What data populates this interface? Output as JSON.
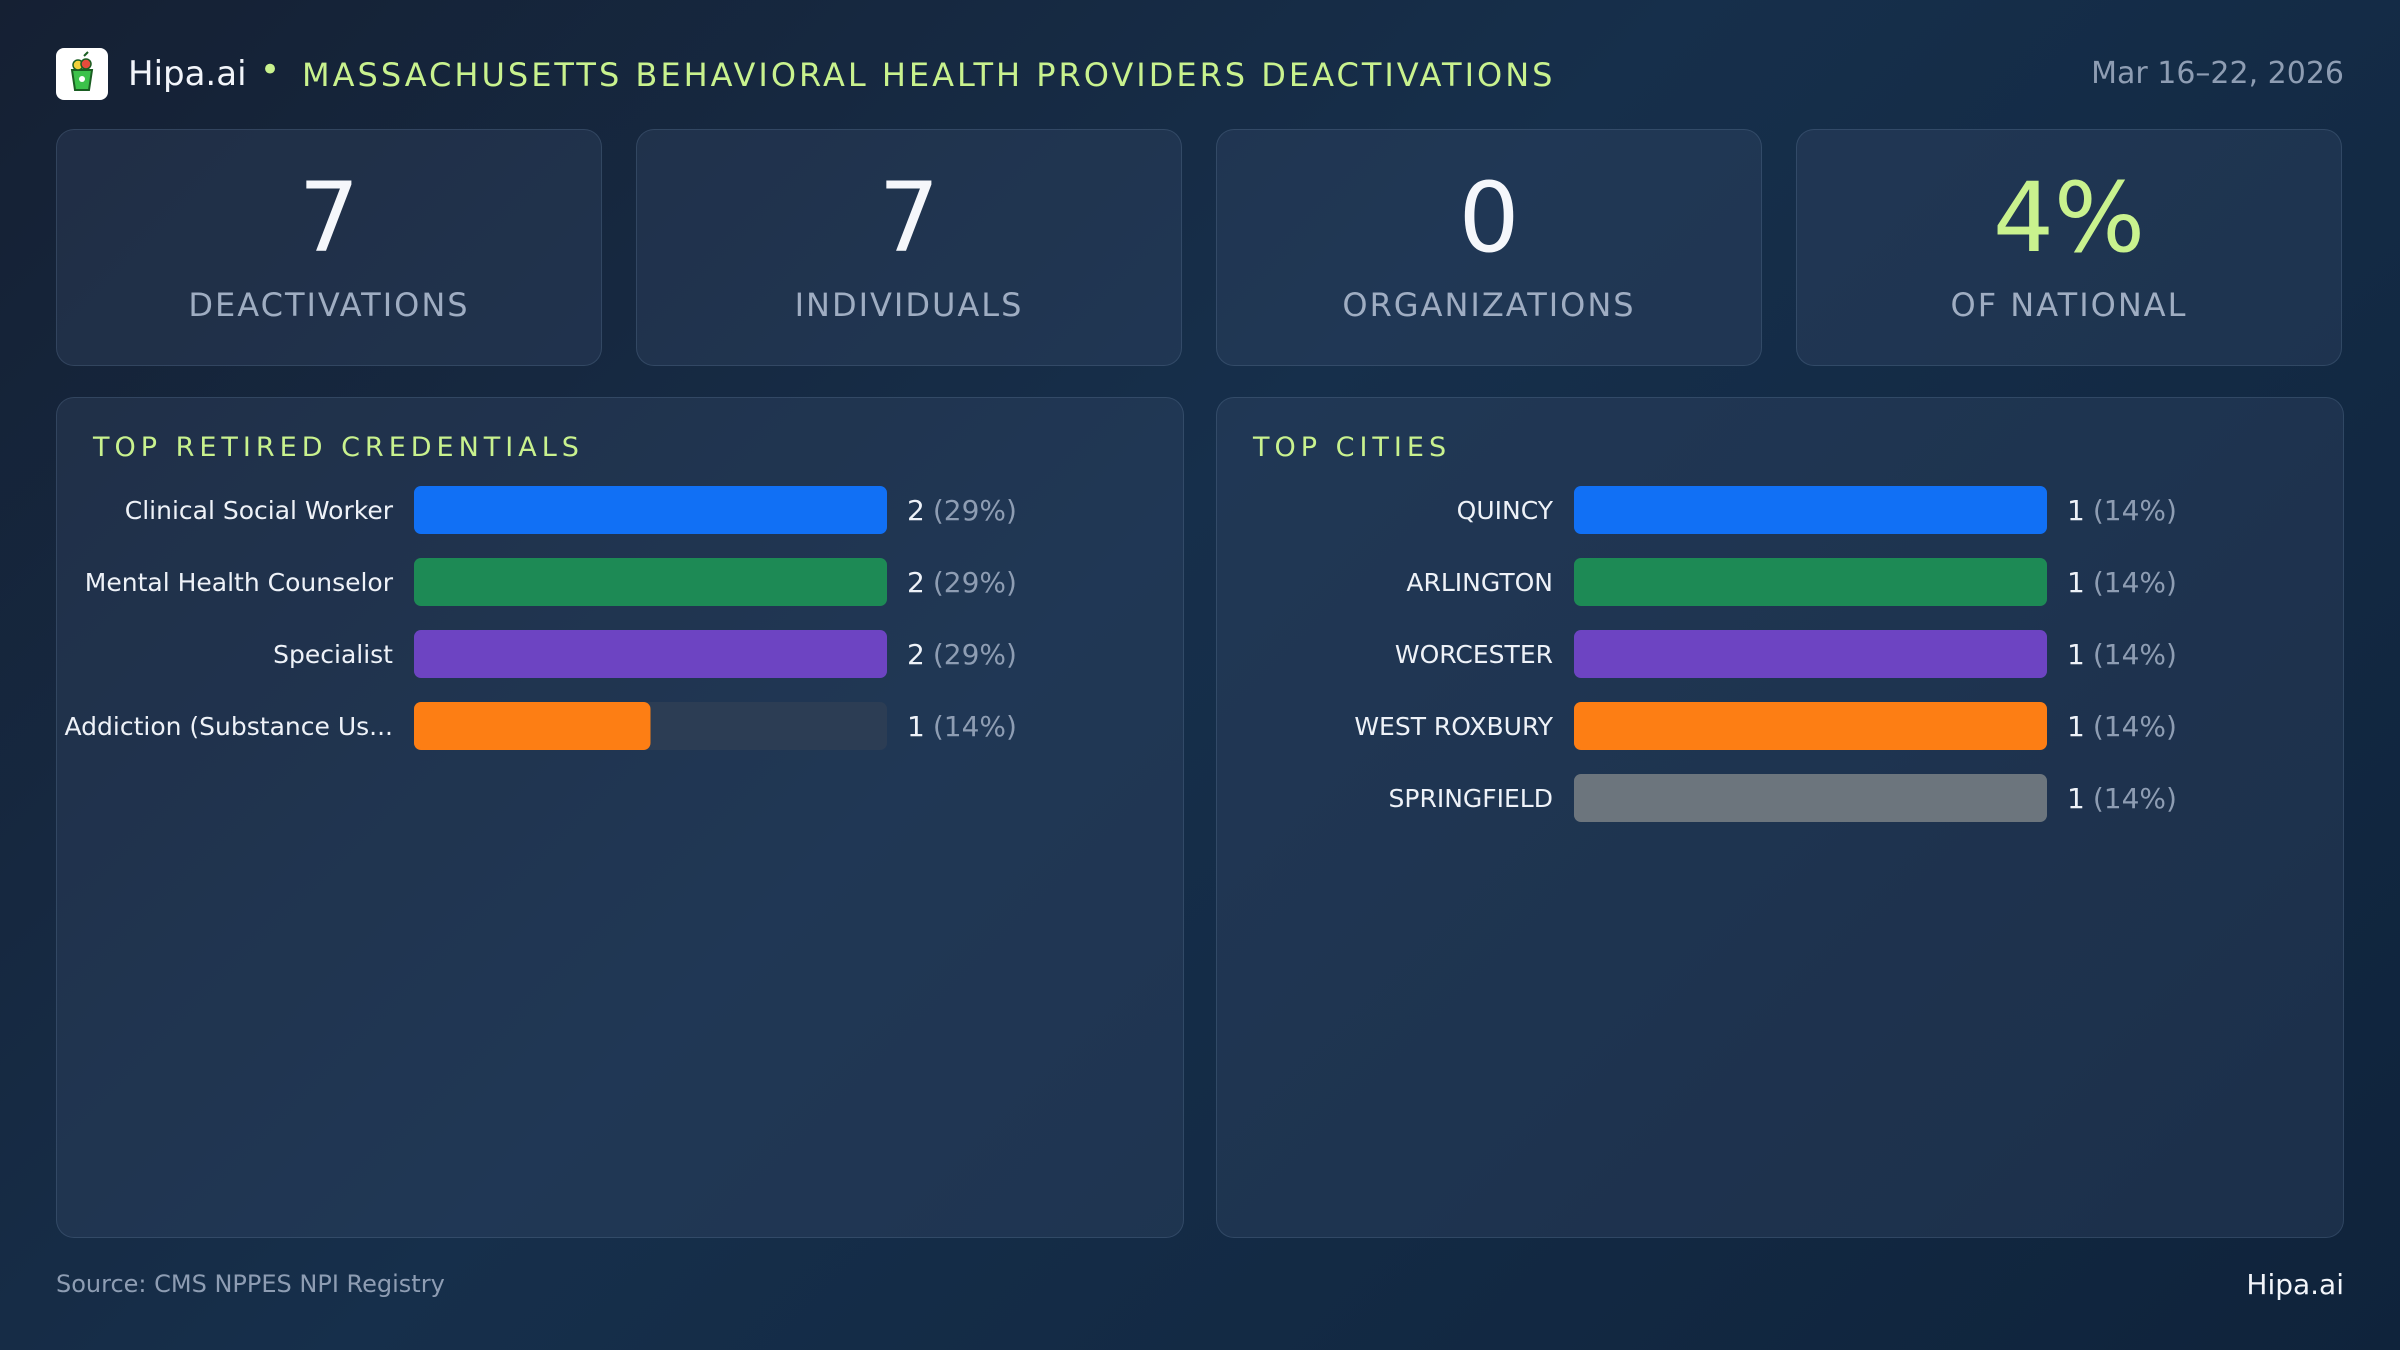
{
  "header": {
    "brand": "Hipa.ai",
    "separator": "•",
    "title": "MASSACHUSETTS BEHAVIORAL HEALTH PROVIDERS DEACTIVATIONS",
    "date_range": "Mar 16–22, 2026",
    "logo_icon": "fruit-cup-icon"
  },
  "kpis": [
    {
      "value": "7",
      "label": "DEACTIVATIONS"
    },
    {
      "value": "7",
      "label": "INDIVIDUALS"
    },
    {
      "value": "0",
      "label": "ORGANIZATIONS"
    },
    {
      "value": "4%",
      "label": "OF NATIONAL"
    }
  ],
  "colors": {
    "accent": "#c9f28e",
    "track": "#2c3d54",
    "series": [
      "#1170f5",
      "#1d8a55",
      "#6d44c2",
      "#fd7e14",
      "#6c757d"
    ]
  },
  "chart_data": [
    {
      "type": "bar",
      "orientation": "horizontal",
      "title": "TOP RETIRED CREDENTIALS",
      "categories": [
        "Clinical Social Worker",
        "Mental Health Counselor",
        "Specialist",
        "Addiction (Substance Us..."
      ],
      "values": [
        2,
        2,
        2,
        1
      ],
      "labels": [
        "(29%)",
        "(29%)",
        "(29%)",
        "(14%)"
      ],
      "xlim": [
        0,
        2
      ]
    },
    {
      "type": "bar",
      "orientation": "horizontal",
      "title": "TOP CITIES",
      "categories": [
        "QUINCY",
        "ARLINGTON",
        "WORCESTER",
        "WEST ROXBURY",
        "SPRINGFIELD"
      ],
      "values": [
        1,
        1,
        1,
        1,
        1
      ],
      "labels": [
        "(14%)",
        "(14%)",
        "(14%)",
        "(14%)",
        "(14%)"
      ],
      "xlim": [
        0,
        1
      ]
    }
  ],
  "footer": {
    "source": "Source: CMS NPPES NPI Registry",
    "brand": "Hipa.ai"
  }
}
